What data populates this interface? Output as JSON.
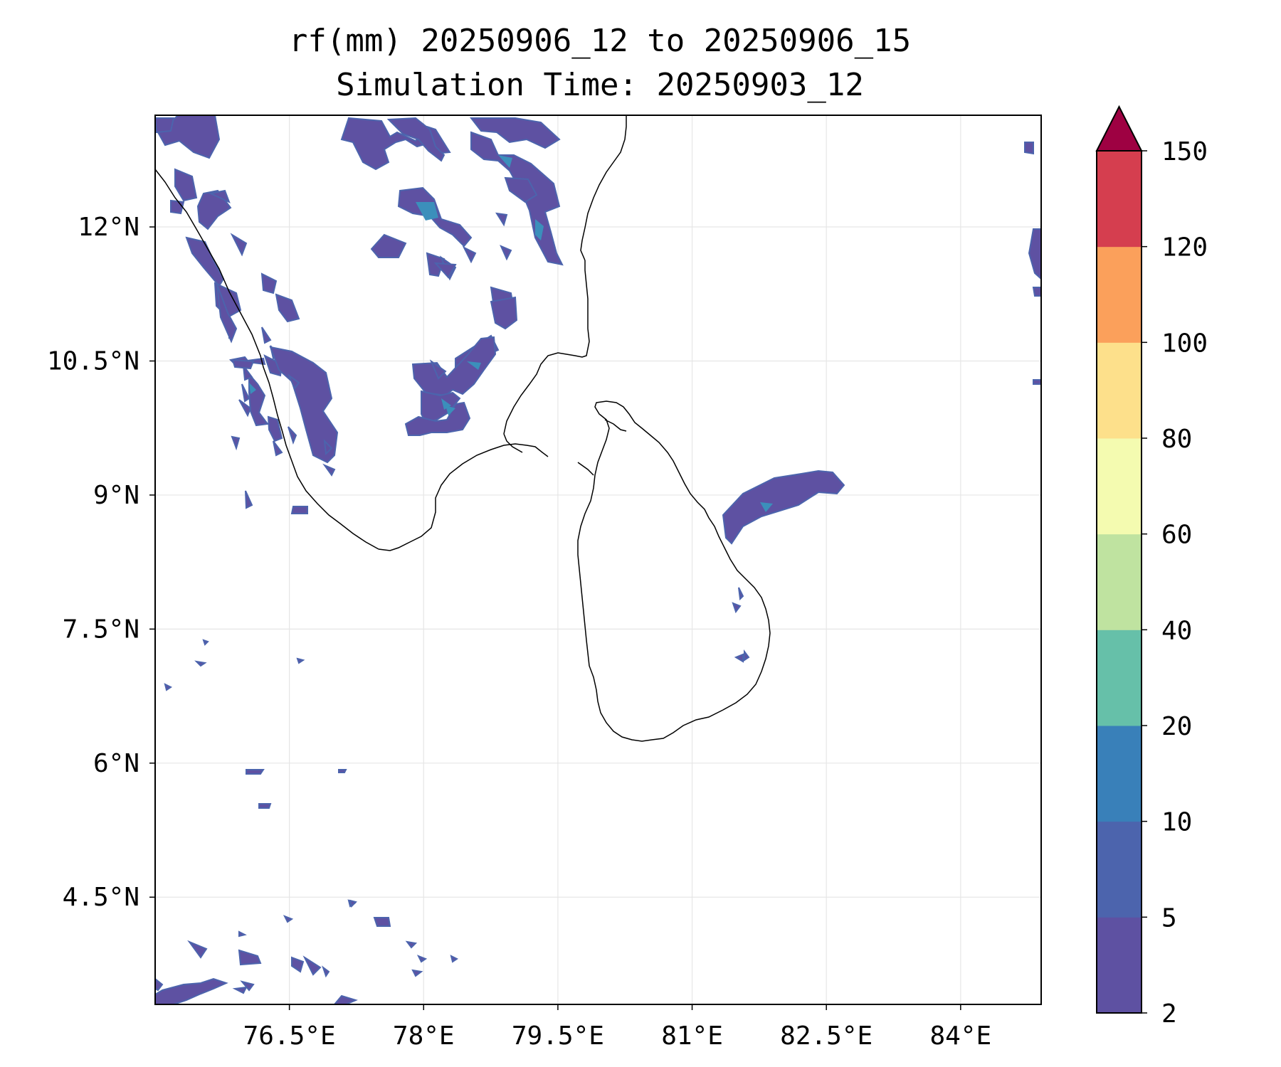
{
  "title": {
    "line1": "rf(mm) 20250906_12 to 20250906_15",
    "line2": "Simulation Time: 20250903_12"
  },
  "map": {
    "lon_range": [
      75.0,
      84.9
    ],
    "lat_range": [
      3.3,
      13.25
    ],
    "lat_ticks": [
      "12°N",
      "10.5°N",
      "9°N",
      "7.5°N",
      "6°N",
      "4.5°N"
    ],
    "lat_tick_values": [
      12,
      10.5,
      9,
      7.5,
      6,
      4.5
    ],
    "lon_ticks": [
      "76.5°E",
      "78°E",
      "79.5°E",
      "81°E",
      "82.5°E",
      "84°E"
    ],
    "lon_tick_values": [
      76.5,
      78,
      79.5,
      81,
      82.5,
      84
    ],
    "grid": true,
    "coastline_color": "#000000",
    "regions": [
      "Southern India",
      "Sri Lanka"
    ]
  },
  "colorbar": {
    "levels": [
      "2",
      "5",
      "10",
      "20",
      "40",
      "60",
      "80",
      "100",
      "120",
      "150"
    ],
    "colors": [
      "#5e51a2",
      "#4c64ad",
      "#3980b9",
      "#66c0a9",
      "#bfe3a0",
      "#f4fbb0",
      "#fde08b",
      "#fba05b",
      "#d53e4f"
    ],
    "extend_max_color": "#9e0142",
    "extend": "max"
  },
  "rain_color_light": "#5e51a2",
  "rain_color_mid": "#4c64ad",
  "rain_color_core": "#3b8fbb"
}
